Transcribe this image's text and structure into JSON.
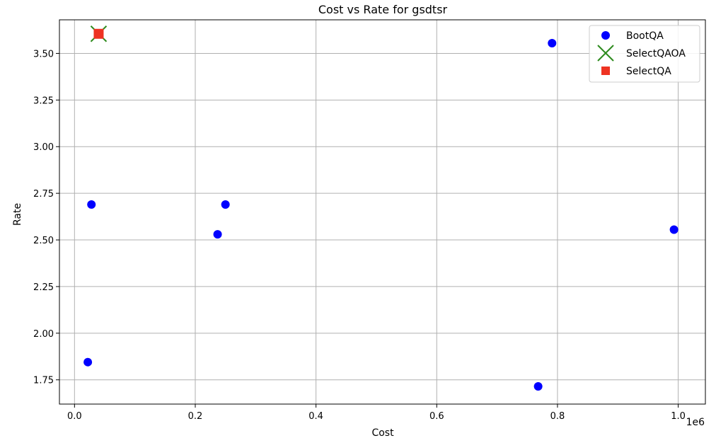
{
  "chart_data": {
    "type": "scatter",
    "title": "Cost vs Rate for gsdtsr",
    "xlabel": "Cost",
    "ylabel": "Rate",
    "x_offset_text": "1e6",
    "xlim": [
      -25000,
      1045000
    ],
    "ylim": [
      1.62,
      3.68
    ],
    "xticks": [
      0,
      200000,
      400000,
      600000,
      800000,
      1000000
    ],
    "xtick_labels": [
      "0.0",
      "0.2",
      "0.4",
      "0.6",
      "0.8",
      "1.0"
    ],
    "yticks": [
      1.75,
      2.0,
      2.25,
      2.5,
      2.75,
      3.0,
      3.25,
      3.5
    ],
    "ytick_labels": [
      "1.75",
      "2.00",
      "2.25",
      "2.50",
      "2.75",
      "3.00",
      "3.25",
      "3.50"
    ],
    "grid": true,
    "legend_position": "top-right",
    "series": [
      {
        "name": "BootQA",
        "marker": "circle",
        "color": "#0000ff",
        "points": [
          {
            "x": 22000,
            "y": 1.845
          },
          {
            "x": 28000,
            "y": 2.69
          },
          {
            "x": 237000,
            "y": 2.53
          },
          {
            "x": 250000,
            "y": 2.69
          },
          {
            "x": 768000,
            "y": 1.715
          },
          {
            "x": 791000,
            "y": 3.555
          },
          {
            "x": 993000,
            "y": 2.555
          }
        ]
      },
      {
        "name": "SelectQAOA",
        "marker": "x",
        "color": "#2e8b1e",
        "points": [
          {
            "x": 40000,
            "y": 3.605
          }
        ]
      },
      {
        "name": "SelectQA",
        "marker": "square",
        "color": "#ee3322",
        "points": [
          {
            "x": 40000,
            "y": 3.605
          }
        ]
      }
    ]
  }
}
